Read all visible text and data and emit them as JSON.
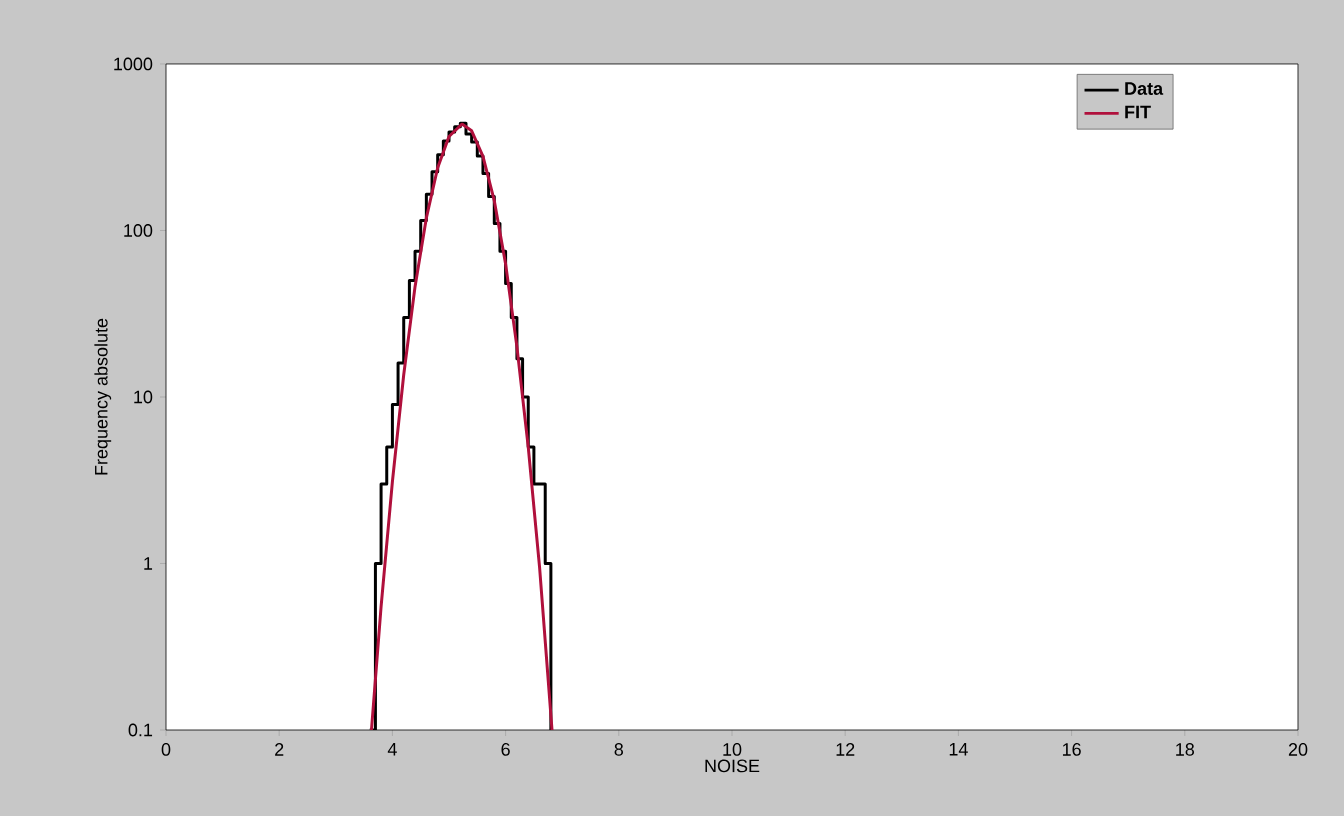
{
  "chart_data": {
    "type": "line",
    "xlabel": "NOISE",
    "ylabel": "Frequency absolute",
    "xlim": [
      0,
      20
    ],
    "xticks": [
      0,
      2,
      4,
      6,
      8,
      10,
      12,
      14,
      16,
      18,
      20
    ],
    "ylim": [
      0.1,
      1000
    ],
    "yticks": [
      0.1,
      1,
      10,
      100,
      1000
    ],
    "log": "y",
    "grid": false,
    "legend": "top right",
    "marker": "none",
    "series": [
      {
        "name": "Data",
        "type": "step",
        "color": "#000000",
        "x": [
          3.6,
          3.7,
          3.8,
          3.9,
          4.0,
          4.1,
          4.2,
          4.3,
          4.4,
          4.5,
          4.6,
          4.7,
          4.8,
          4.9,
          5.0,
          5.1,
          5.2,
          5.3,
          5.4,
          5.5,
          5.6,
          5.7,
          5.8,
          5.9,
          6.0,
          6.1,
          6.2,
          6.3,
          6.4,
          6.5,
          6.6,
          6.7,
          6.8
        ],
        "values": [
          0.1,
          1,
          3,
          5,
          9,
          16,
          30,
          50,
          75,
          115,
          165,
          225,
          285,
          345,
          390,
          420,
          440,
          380,
          340,
          280,
          220,
          160,
          110,
          75,
          48,
          30,
          17,
          10,
          5,
          3,
          3,
          1,
          0.1
        ]
      },
      {
        "name": "FIT",
        "color": "#b0103c",
        "x": [
          3.63,
          3.8,
          4.0,
          4.2,
          4.4,
          4.6,
          4.8,
          5.0,
          5.23,
          5.4,
          5.6,
          5.8,
          6.0,
          6.2,
          6.4,
          6.6,
          6.82
        ],
        "values": [
          0.1,
          0.55,
          3.1,
          13.6,
          46,
          119,
          238,
          367,
          436,
          397,
          279,
          151,
          63,
          20,
          5,
          0.95,
          0.1
        ]
      }
    ]
  }
}
